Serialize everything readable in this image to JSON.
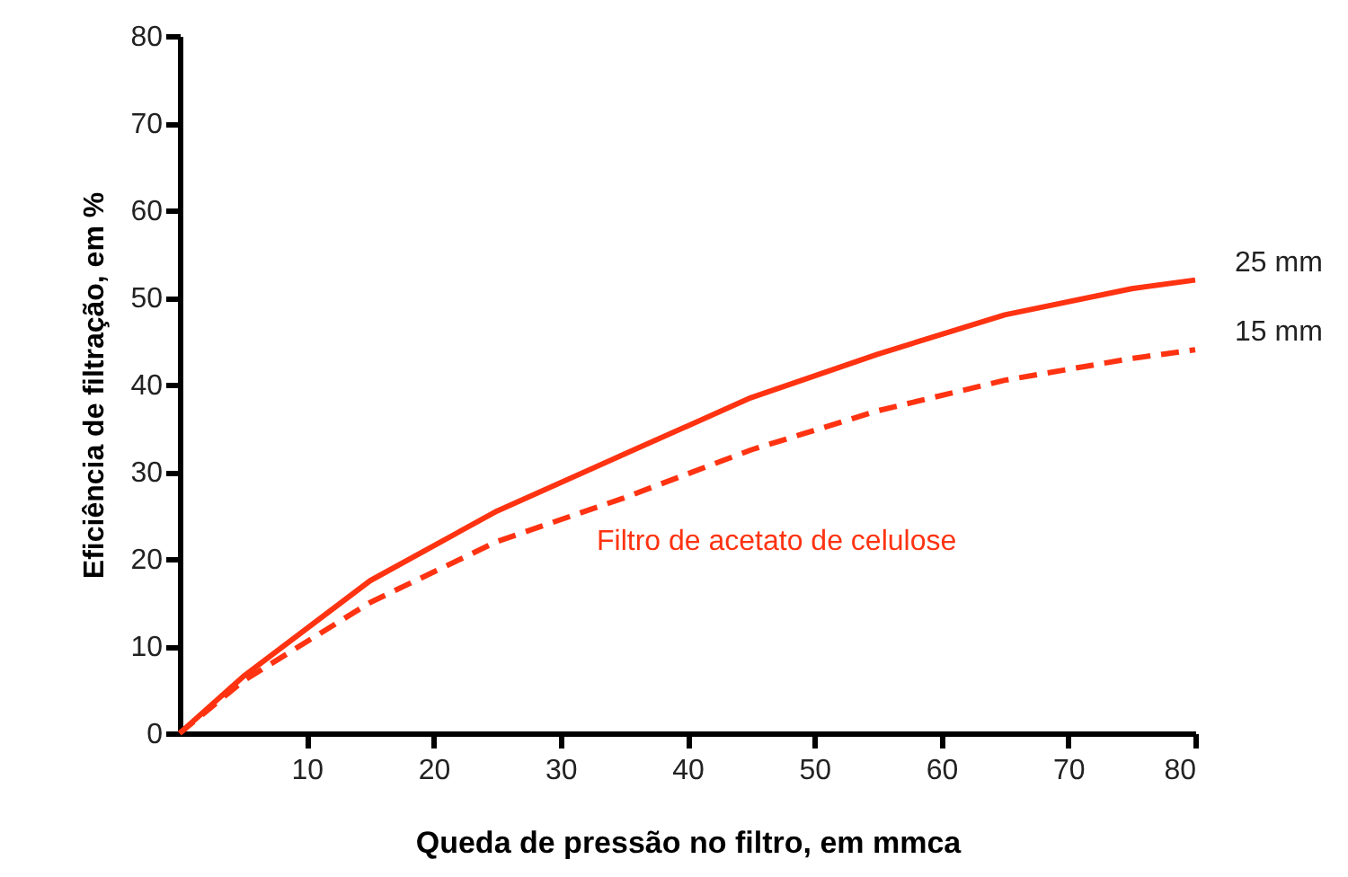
{
  "chart_data": {
    "type": "line",
    "xlabel": "Queda de pressão no filtro, em mmca",
    "ylabel": "Eficiência de filtração, em  %",
    "annotations": [
      "Filtro de acetato de celulose"
    ],
    "x": [
      0,
      5,
      15,
      25,
      35,
      45,
      55,
      65,
      75,
      80
    ],
    "series": [
      {
        "name": "25 mm",
        "color": "#ff3311",
        "line_style": "solid",
        "values": [
          0,
          6.5,
          17.5,
          25.5,
          32,
          38.5,
          43.5,
          48,
          51,
          52
        ]
      },
      {
        "name": "15 mm",
        "color": "#ff3311",
        "line_style": "dashed",
        "values": [
          0,
          6,
          15,
          22,
          27,
          32.5,
          37,
          40.5,
          43,
          44
        ]
      }
    ],
    "xlim": [
      0,
      80
    ],
    "xticks": [
      10,
      20,
      30,
      40,
      50,
      60,
      70,
      80
    ],
    "ylim": [
      0,
      80
    ],
    "yticks": [
      0,
      10,
      20,
      30,
      40,
      50,
      60,
      70,
      80
    ],
    "grid": false,
    "marker": "none"
  }
}
